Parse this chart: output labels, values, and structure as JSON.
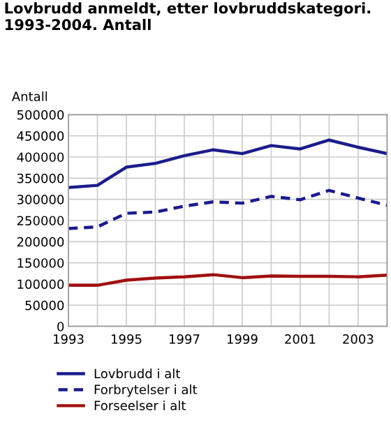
{
  "chart_data": {
    "type": "line",
    "title": "Lovbrudd anmeldt, etter lovbruddskategori.\n1993-2004. Antall",
    "ylabel": "Antall",
    "x": [
      1993,
      1994,
      1995,
      1996,
      1997,
      1998,
      1999,
      2000,
      2001,
      2002,
      2003,
      2004
    ],
    "series": [
      {
        "name": "Lovbrudd i alt",
        "color": "#1c1c8c",
        "line_style": "solid",
        "values": [
          328000,
          333000,
          376000,
          385000,
          403000,
          417000,
          408000,
          427000,
          419000,
          440000,
          423000,
          408000
        ]
      },
      {
        "name": "Forbrytelser i alt",
        "color": "#1c1c8c",
        "line_style": "dashed",
        "values": [
          231000,
          235000,
          267000,
          270000,
          284000,
          294000,
          291000,
          307000,
          299000,
          321000,
          303000,
          286000
        ]
      },
      {
        "name": "Forseelser i alt",
        "color": "#a01010",
        "line_style": "solid",
        "values": [
          97000,
          97000,
          109000,
          114000,
          117000,
          122000,
          115000,
          119000,
          118000,
          118000,
          117000,
          121000
        ]
      }
    ],
    "xlim": [
      1993,
      2004
    ],
    "xticks": [
      1993,
      {
        "value": 1994,
        "label": null
      },
      1995,
      {
        "value": 1996,
        "label": null
      },
      1997,
      {
        "value": 1998,
        "label": null
      },
      1999,
      {
        "value": 2000,
        "label": null
      },
      2001,
      {
        "value": 2002,
        "label": null
      },
      2003,
      {
        "value": 2004,
        "label": null
      }
    ],
    "ylim": [
      0,
      500000
    ],
    "yticks": [
      0,
      50000,
      100000,
      150000,
      200000,
      250000,
      300000,
      350000,
      400000,
      450000,
      500000
    ],
    "grid": true,
    "legend": "bottom",
    "marker": "none"
  }
}
